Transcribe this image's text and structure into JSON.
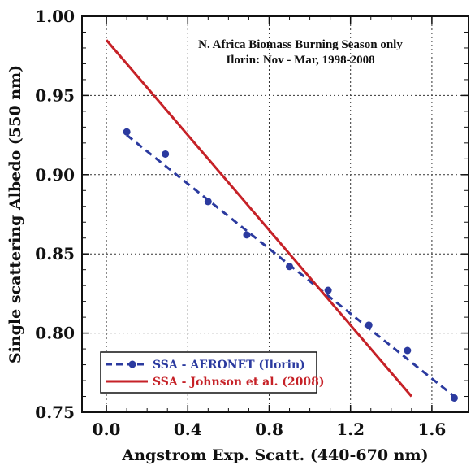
{
  "chart_data": {
    "type": "line",
    "title": "",
    "annotations": [
      "N. Africa Biomass Burning Season only",
      "Ilorin: Nov - Mar, 1998-2008"
    ],
    "xlabel": "Angstrom Exp. Scatt. (440-670 nm)",
    "ylabel": "Single scattering Albedo (550 nm)",
    "xlim": [
      -0.12,
      1.78
    ],
    "ylim": [
      0.75,
      1.0
    ],
    "xticks": [
      0.0,
      0.4,
      0.8,
      1.2,
      1.6
    ],
    "xtick_labels": [
      "0.0",
      "0.4",
      "0.8",
      "1.2",
      "1.6"
    ],
    "yticks": [
      0.75,
      0.8,
      0.85,
      0.9,
      0.95,
      1.0
    ],
    "ytick_labels": [
      "0.75",
      "0.80",
      "0.85",
      "0.90",
      "0.95",
      "1.00"
    ],
    "grid": true,
    "legend_position": "bottom-left",
    "series": [
      {
        "name": "SSA - AERONET (Ilorin)",
        "color": "#2b3a9f",
        "style": "dashed",
        "marker": "circle",
        "x": [
          0.1,
          0.29,
          0.5,
          0.69,
          0.9,
          1.09,
          1.29,
          1.48,
          1.71
        ],
        "y": [
          0.927,
          0.913,
          0.883,
          0.862,
          0.842,
          0.827,
          0.805,
          0.789,
          0.759
        ],
        "line_x": [
          0.1,
          1.71
        ],
        "line_y": [
          0.925,
          0.76
        ]
      },
      {
        "name": "SSA - Johnson et al. (2008)",
        "color": "#c62127",
        "style": "solid",
        "marker": "none",
        "x": [
          0.0,
          1.5
        ],
        "y": [
          0.985,
          0.76
        ]
      }
    ]
  }
}
